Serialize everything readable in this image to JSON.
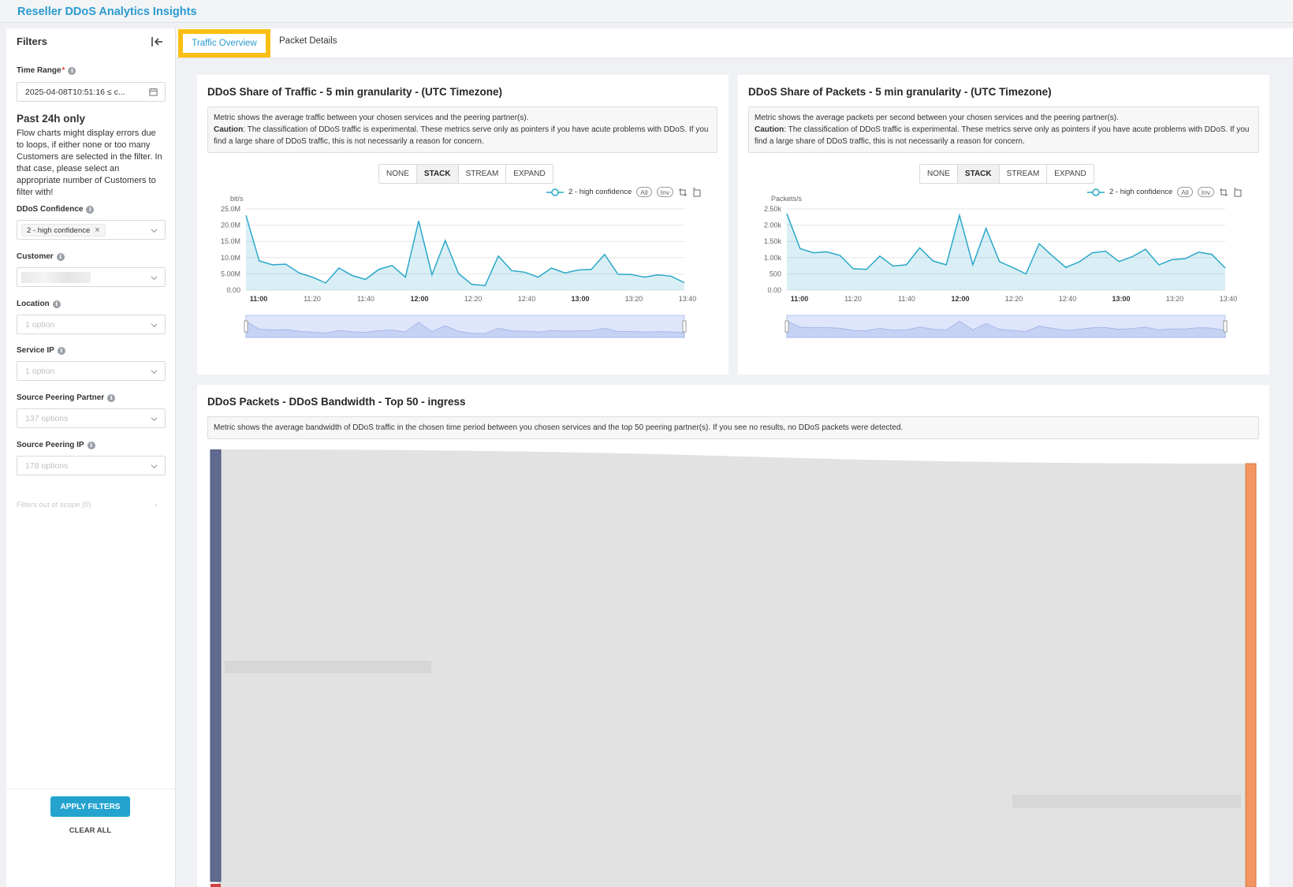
{
  "app": {
    "title": "Reseller DDoS Analytics Insights"
  },
  "sidebar": {
    "heading": "Filters",
    "time_range": {
      "label": "Time Range",
      "required_mark": "*",
      "value": "2025-04-08T10:51:16 ≤ c..."
    },
    "notice": {
      "title": "Past 24h only",
      "text": "Flow charts might display errors due to loops, if either none or too many Customers are selected in the filter. In that case, please select an appropriate number of Customers to filter with!"
    },
    "ddos_confidence": {
      "label": "DDoS Confidence",
      "tag": "2 - high confidence"
    },
    "customer": {
      "label": "Customer"
    },
    "location": {
      "label": "Location",
      "placeholder": "1 option"
    },
    "service_ip": {
      "label": "Service IP",
      "placeholder": "1 option"
    },
    "source_peering_partner": {
      "label": "Source Peering Partner",
      "placeholder": "137 options"
    },
    "source_peering_ip": {
      "label": "Source Peering IP",
      "placeholder": "178 options"
    },
    "out_of_scope": "Filters out of scope (0)",
    "apply_label": "APPLY FILTERS",
    "clear_label": "CLEAR ALL"
  },
  "tabs": [
    {
      "label": "Traffic Overview",
      "active": true
    },
    {
      "label": "Packet Details",
      "active": false
    }
  ],
  "controls": {
    "modes": [
      "NONE",
      "STACK",
      "STREAM",
      "EXPAND"
    ],
    "active_mode": "STACK",
    "legend_label": "2 - high confidence",
    "all": "All",
    "inv": "Inv"
  },
  "traffic_panel": {
    "title": "DDoS Share of Traffic - 5 min granularity - (UTC Timezone)",
    "desc_line1": "Metric shows the average traffic between your chosen services and the peering partner(s).",
    "caution_label": "Caution",
    "caution_text": ": The classification of DDoS traffic is experimental. These metrics serve only as pointers if you have acute problems with DDoS. If you find a large share of DDoS traffic, this is not necessarily a reason for concern."
  },
  "packets_panel": {
    "title": "DDoS Share of Packets - 5 min granularity - (UTC Timezone)",
    "desc_line1": "Metric shows the average packets per second between your chosen services and the peering partner(s).",
    "caution_label": "Caution",
    "caution_text": ": The classification of DDoS traffic is experimental. These metrics serve only as pointers if you have acute problems with DDoS. If you find a large share of DDoS traffic, this is not necessarily a reason for concern."
  },
  "sankey_panel": {
    "title": "DDoS Packets - DDoS Bandwidth - Top 50 - ingress",
    "desc": "Metric shows the average bandwidth of DDoS traffic in the chosen time period between you chosen services and the top 50 peering partner(s). If you see no results, no DDoS packets were detected."
  },
  "chart_data": [
    {
      "type": "area",
      "title": "DDoS Share of Traffic - 5 min granularity - (UTC Timezone)",
      "ylabel": "bit/s",
      "ylim": [
        0,
        25000000
      ],
      "yticks": [
        "25.0M",
        "20.0M",
        "15.0M",
        "10.0M",
        "5.00M",
        "0.00"
      ],
      "xticks": [
        "11:00",
        "11:20",
        "11:40",
        "12:00",
        "12:20",
        "12:40",
        "13:00",
        "13:20",
        "13:40"
      ],
      "bold_xticks": [
        "11:00",
        "12:00",
        "13:00"
      ],
      "series": [
        {
          "name": "2 - high confidence",
          "color": "#2aa8c9",
          "values": [
            23000000,
            9000000,
            7800000,
            8000000,
            5300000,
            4000000,
            2200000,
            6800000,
            4500000,
            3300000,
            6400000,
            7600000,
            4000000,
            21300000,
            4700000,
            15300000,
            5100000,
            1800000,
            1400000,
            10500000,
            6000000,
            5500000,
            4000000,
            6800000,
            5300000,
            6200000,
            6400000,
            11000000,
            4900000,
            4800000,
            4000000,
            4700000,
            4300000,
            2300000
          ]
        }
      ]
    },
    {
      "type": "area",
      "title": "DDoS Share of Packets - 5 min granularity - (UTC Timezone)",
      "ylabel": "Packets/s",
      "ylim": [
        0,
        2500
      ],
      "yticks": [
        "2.50k",
        "2.00k",
        "1.50k",
        "1.00k",
        "500",
        "0.00"
      ],
      "xticks": [
        "11:00",
        "11:20",
        "11:40",
        "12:00",
        "12:20",
        "12:40",
        "13:00",
        "13:20",
        "13:40"
      ],
      "bold_xticks": [
        "11:00",
        "12:00",
        "13:00"
      ],
      "series": [
        {
          "name": "2 - high confidence",
          "color": "#2aa8c9",
          "values": [
            2350,
            1280,
            1150,
            1180,
            1070,
            660,
            640,
            1050,
            740,
            780,
            1300,
            900,
            780,
            2300,
            780,
            1900,
            880,
            700,
            500,
            1430,
            1050,
            700,
            870,
            1150,
            1200,
            880,
            1030,
            1260,
            780,
            940,
            970,
            1170,
            1100,
            680
          ]
        }
      ]
    }
  ]
}
